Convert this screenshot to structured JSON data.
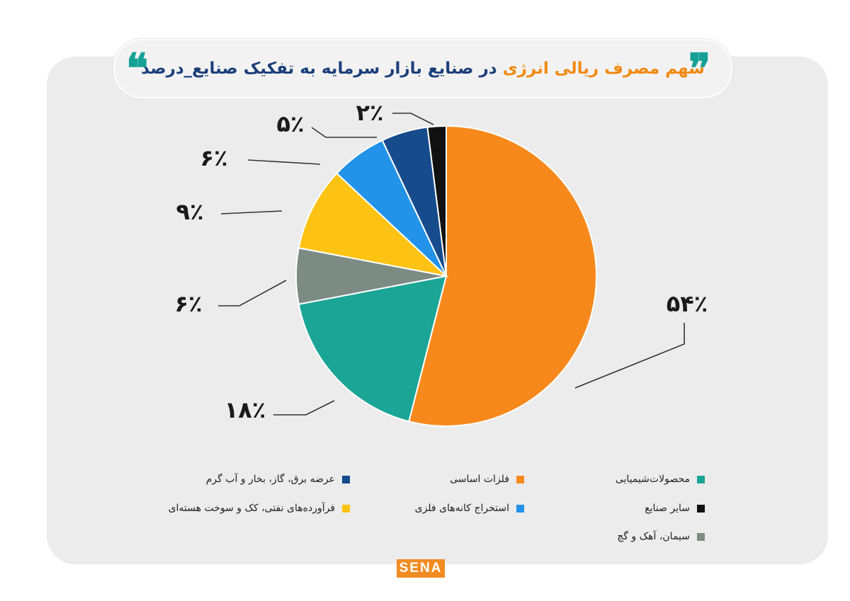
{
  "header": {
    "title_part1": "سهم مصرف ریالی انرژی",
    "title_part2": " در صنایع بازار سرمایه به تفکیک صنایع_درصد",
    "quote_open": "❞",
    "quote_close": "❝",
    "colors": {
      "accent_blue": "#1b3f7a",
      "accent_orange": "#f08a12",
      "quote_teal": "#17a196"
    }
  },
  "chart_data": {
    "type": "pie",
    "slices": [
      {
        "label": "فلزات اساسی",
        "value": 54,
        "display": "۵۴٪",
        "color": "#f7891c"
      },
      {
        "label": "محصولات‌شیمیایی",
        "value": 18,
        "display": "۱۸٪",
        "color": "#1ba596"
      },
      {
        "label": "سیمان، آهک و گچ",
        "value": 6,
        "display": "۶٪",
        "color": "#7c8b83"
      },
      {
        "label": "فرآورده‌های نفتی، کک و سوخت هسته‌ای",
        "value": 9,
        "display": "۹٪",
        "color": "#fdc314"
      },
      {
        "label": "استخراج کانه‌های فلزی",
        "value": 6,
        "display": "۶٪",
        "color": "#2293e8"
      },
      {
        "label": "عرضه برق، گاز، بخار و آب گرم",
        "value": 5,
        "display": "۵٪",
        "color": "#164b8c"
      },
      {
        "label": "سایر صنایع",
        "value": 2,
        "display": "۲٪",
        "color": "#111111"
      }
    ]
  },
  "legend": [
    {
      "label": "محصولات‌شیمیایی",
      "color": "#1ba596"
    },
    {
      "label": "فلزات اساسی",
      "color": "#f7891c"
    },
    {
      "label": "عرضه برق، گاز، بخار و آب گرم",
      "color": "#164b8c"
    },
    {
      "label": "سایر صنایع",
      "color": "#111111"
    },
    {
      "label": "استخراج کانه‌های فلزی",
      "color": "#2293e8"
    },
    {
      "label": "فرآورده‌های نفتی، کک و سوخت هسته‌ای",
      "color": "#fdc314"
    },
    {
      "label": "سیمان، آهک و گچ",
      "color": "#7c8b83"
    }
  ],
  "footer": {
    "logo_text": "SENA"
  }
}
